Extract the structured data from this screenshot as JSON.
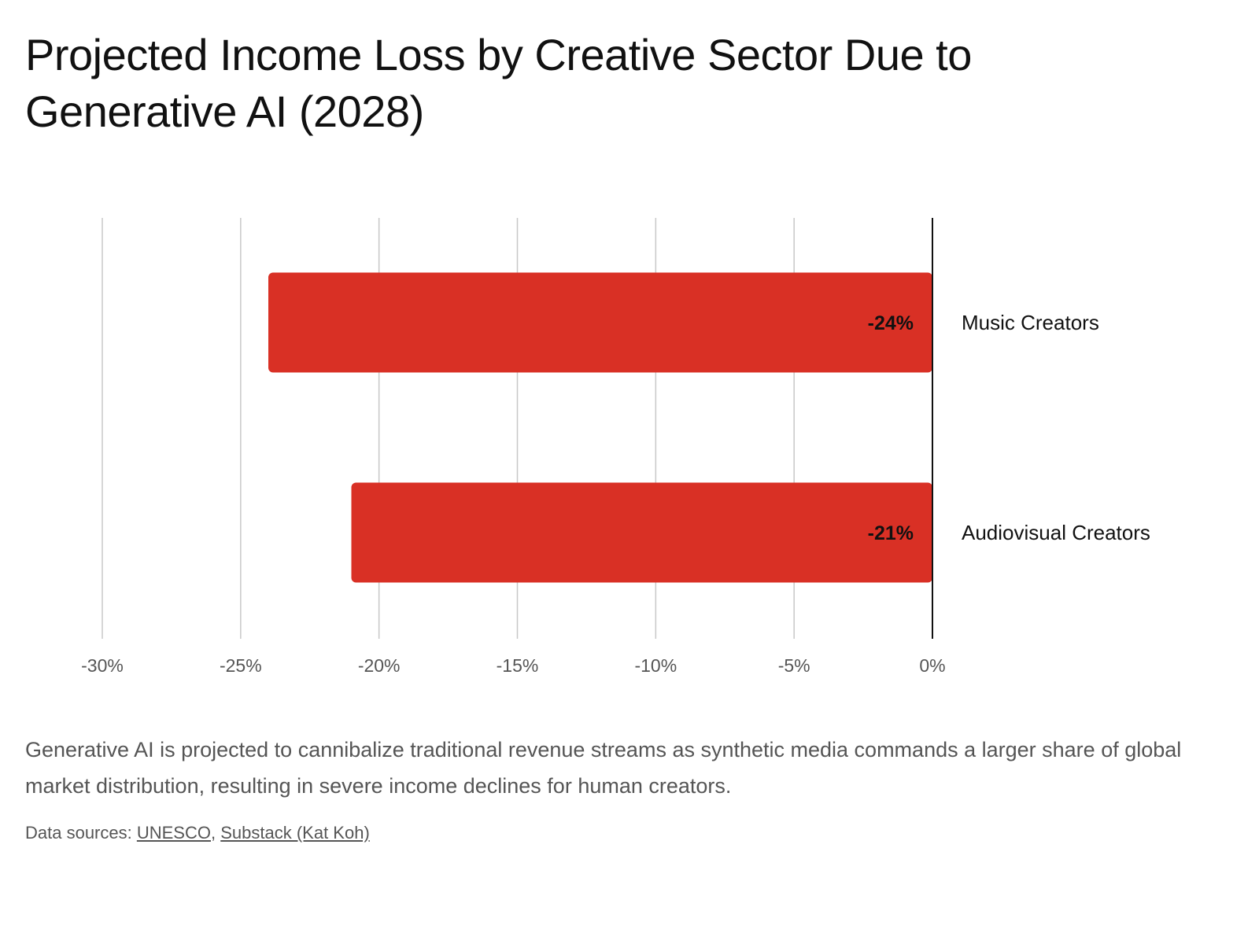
{
  "title": "Projected Income Loss by Creative Sector Due to Generative AI (2028)",
  "caption": "Generative AI is projected to cannibalize traditional revenue streams as synthetic media commands a larger share of global market distribution, resulting in severe income declines for human creators.",
  "sources": {
    "label": "Data sources:",
    "links": [
      {
        "text": "UNESCO"
      },
      {
        "text": "Substack (Kat Koh)"
      }
    ],
    "separator": ","
  },
  "colors": {
    "bar": "#d93025",
    "grid": "#c8c8c8",
    "zero_line": "#111111",
    "tick_text": "#555555",
    "label_text": "#111111"
  },
  "chart_data": {
    "type": "bar",
    "orientation": "horizontal",
    "categories": [
      "Music Creators",
      "Audiovisual Creators"
    ],
    "values": [
      -24,
      -21
    ],
    "data_labels": [
      "-24%",
      "-21%"
    ],
    "xlim": [
      -30,
      0
    ],
    "xticks": [
      -30,
      -25,
      -20,
      -15,
      -10,
      -5,
      0
    ],
    "xtick_labels": [
      "-30%",
      "-25%",
      "-20%",
      "-15%",
      "-10%",
      "-5%",
      "0%"
    ],
    "grid": true,
    "category_label_position": "right",
    "legend": "none"
  }
}
